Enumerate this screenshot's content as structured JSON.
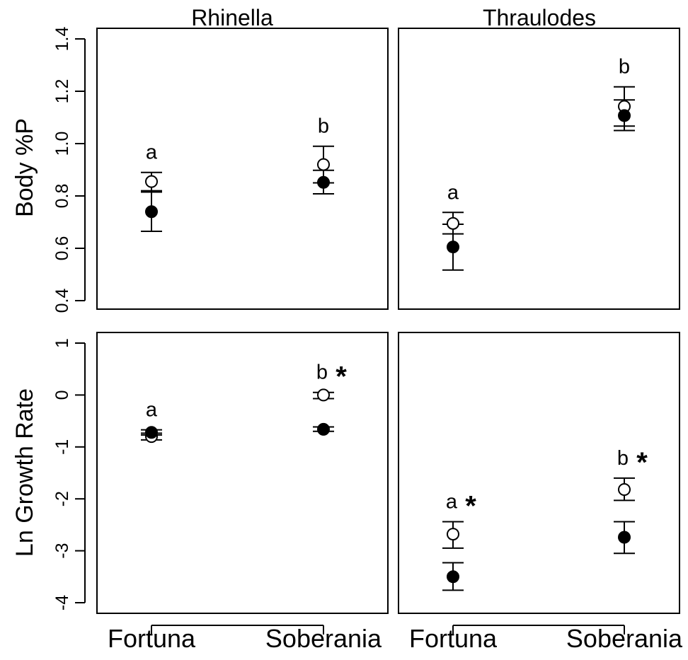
{
  "chart_data": {
    "type": "scatter",
    "error_bars": true,
    "markers": {
      "open_circle": "open",
      "filled_circle": "filled"
    },
    "columns": [
      "Rhinella",
      "Thraulodes"
    ],
    "categories": [
      "Fortuna",
      "Soberania"
    ],
    "panels": [
      {
        "id": "rhinella-bodyp",
        "title": "Rhinella",
        "ylabel": "Body %P",
        "ylim": [
          0.4,
          1.4
        ],
        "yticks": [
          "0.4",
          "0.6",
          "0.8",
          "1.0",
          "1.2",
          "1.4"
        ],
        "ytick_values": [
          0.4,
          0.6,
          0.8,
          1.0,
          1.2,
          1.4
        ],
        "points": [
          {
            "category": "Fortuna",
            "open": 0.855,
            "open_err": [
              0.82,
              0.89
            ],
            "filled": 0.74,
            "filled_err": [
              0.665,
              0.815
            ],
            "label": "a",
            "star": ""
          },
          {
            "category": "Soberania",
            "open": 0.92,
            "open_err": [
              0.85,
              0.99
            ],
            "filled": 0.852,
            "filled_err": [
              0.808,
              0.898
            ],
            "label": "b",
            "star": ""
          }
        ]
      },
      {
        "id": "thraulodes-bodyp",
        "title": "Thraulodes",
        "ylabel": "",
        "ylim": [
          0.4,
          1.4
        ],
        "yticks": [],
        "ytick_values": [],
        "points": [
          {
            "category": "Fortuna",
            "open": 0.695,
            "open_err": [
              0.655,
              0.737
            ],
            "filled": 0.605,
            "filled_err": [
              0.517,
              0.692
            ],
            "label": "a",
            "star": ""
          },
          {
            "category": "Soberania",
            "open": 1.142,
            "open_err": [
              1.067,
              1.217
            ],
            "filled": 1.107,
            "filled_err": [
              1.05,
              1.167
            ],
            "label": "b",
            "star": ""
          }
        ]
      },
      {
        "id": "rhinella-growth",
        "title": "",
        "ylabel": "Ln Growth Rate",
        "ylim": [
          -4.2,
          1.2
        ],
        "yticks": [
          "-4",
          "-3",
          "-2",
          "-1",
          "0",
          "1"
        ],
        "ytick_values": [
          -4,
          -3,
          -2,
          -1,
          0,
          1
        ],
        "points": [
          {
            "category": "Fortuna",
            "open": -0.8,
            "open_err": [
              -0.865,
              -0.735
            ],
            "filled": -0.72,
            "filled_err": [
              -0.77,
              -0.67
            ],
            "label": "a",
            "star": ""
          },
          {
            "category": "Soberania",
            "open": 0.0,
            "open_err": [
              -0.07,
              0.05
            ],
            "filled": -0.66,
            "filled_err": [
              -0.7,
              -0.615
            ],
            "label": "b",
            "star": "*"
          }
        ]
      },
      {
        "id": "thraulodes-growth",
        "title": "",
        "ylabel": "",
        "ylim": [
          -4.2,
          1.2
        ],
        "yticks": [],
        "ytick_values": [],
        "points": [
          {
            "category": "Fortuna",
            "open": -2.68,
            "open_err": [
              -2.95,
              -2.44
            ],
            "filled": -3.5,
            "filled_err": [
              -3.76,
              -3.23
            ],
            "label": "a",
            "star": "*"
          },
          {
            "category": "Soberania",
            "open": -1.82,
            "open_err": [
              -2.03,
              -1.6
            ],
            "filled": -2.74,
            "filled_err": [
              -3.05,
              -2.44
            ],
            "label": "b",
            "star": "*"
          }
        ]
      }
    ]
  }
}
